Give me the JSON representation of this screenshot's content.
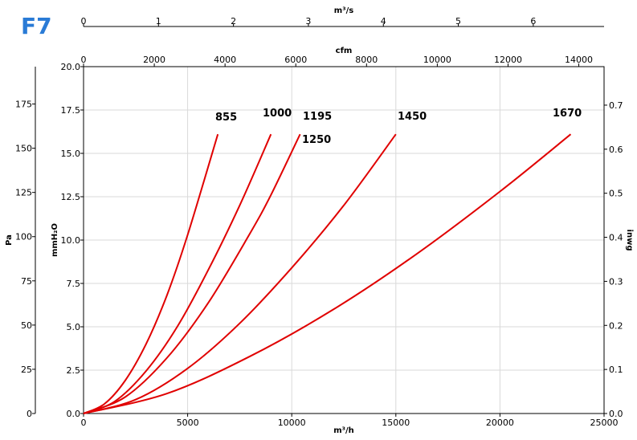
{
  "logo": {
    "text": "F7",
    "color": "#2a7bd6"
  },
  "chart_data": {
    "type": "line",
    "title": "",
    "xlabel": "m³/h",
    "xlim": [
      0,
      25000
    ],
    "x_ticks": [
      0,
      5000,
      10000,
      15000,
      20000,
      25000
    ],
    "ylabel": "mmH₂O",
    "ylim": [
      0,
      20
    ],
    "y_ticks": [
      "0.0",
      "2.5",
      "5.0",
      "7.5",
      "10.0",
      "12.5",
      "15.0",
      "17.5",
      "20.0"
    ],
    "grid": true,
    "curve_color": "#e00000",
    "secondary_axes": {
      "pa": {
        "label": "Pa",
        "ticks": [
          0,
          25,
          50,
          75,
          100,
          125,
          150,
          175
        ]
      },
      "inwg": {
        "label": "inwg",
        "ticks": [
          "0.0",
          "0.1",
          "0.2",
          "0.3",
          "0.4",
          "0.5",
          "0.6",
          "0.7"
        ]
      },
      "cfm": {
        "label": "cfm",
        "ticks": [
          0,
          2000,
          4000,
          6000,
          8000,
          10000,
          12000,
          14000
        ]
      },
      "m3s": {
        "label": "m³/s",
        "ticks": [
          0,
          1,
          2,
          3,
          4,
          5,
          6
        ]
      }
    },
    "series": [
      {
        "name": "855",
        "x": [
          0,
          1000,
          2000,
          3000,
          4000,
          5000,
          6450
        ],
        "y": [
          0,
          0.55,
          1.9,
          4.0,
          6.8,
          10.3,
          16.1
        ]
      },
      {
        "name": "1000",
        "x": [
          0,
          1500,
          3000,
          4500,
          6000,
          7500,
          9000
        ],
        "y": [
          0,
          0.7,
          2.45,
          5.0,
          8.3,
          12.0,
          16.1
        ]
      },
      {
        "name": "1195",
        "x": [
          0,
          2000,
          4000,
          6000,
          8000,
          9000,
          10400
        ],
        "y": [
          0,
          0.95,
          3.2,
          6.4,
          10.4,
          12.6,
          16.1
        ]
      },
      {
        "name": "1250",
        "x": [],
        "y": []
      },
      {
        "name": "1450",
        "x": [
          0,
          2500,
          5000,
          7500,
          10000,
          12500,
          15000
        ],
        "y": [
          0,
          0.8,
          2.6,
          5.2,
          8.4,
          12.0,
          16.1
        ]
      },
      {
        "name": "1670",
        "x": [
          0,
          4000,
          8000,
          12000,
          16000,
          20000,
          23400
        ],
        "y": [
          0,
          1.15,
          3.3,
          6.0,
          9.2,
          12.8,
          16.1
        ]
      }
    ]
  }
}
